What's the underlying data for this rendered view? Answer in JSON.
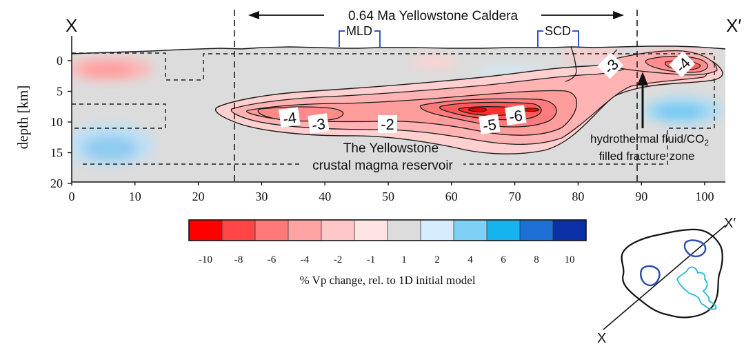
{
  "labels": {
    "x_left": "X",
    "x_right": "X′",
    "caldera": "0.64 Ma Yellowstone Caldera",
    "mld": "MLD",
    "scd": "SCD",
    "depth_axis": "depth [km]",
    "reservoir_line1": "The Yellowstone",
    "reservoir_line2": "crustal magma reservoir",
    "fluid_line1": "hydrothermal fluid/CO",
    "fluid_sub": "2",
    "fluid_line2": "filled fracture zone",
    "colorbar_label": "% Vp change, rel. to 1D initial model",
    "inset_top": "X′",
    "inset_bottom": "X"
  },
  "axes": {
    "x_ticks": [
      "0",
      "10",
      "20",
      "30",
      "40",
      "50",
      "60",
      "70",
      "80",
      "90",
      "100"
    ],
    "y_ticks": [
      "0",
      "5",
      "10",
      "15",
      "20"
    ]
  },
  "contour_labels": [
    "-3",
    "-4",
    "-4",
    "-3",
    "-2",
    "-5",
    "-6"
  ],
  "colorbar": {
    "ticks": [
      "-10",
      "-8",
      "-6",
      "-4",
      "-2",
      "-1",
      "1",
      "2",
      "4",
      "6",
      "8",
      "10"
    ],
    "colors": [
      "#ff0000",
      "#ff4545",
      "#ff7878",
      "#ffa3a3",
      "#ffc8c8",
      "#ffe4e4",
      "#dcdcdc",
      "#d6ecff",
      "#7fd0f5",
      "#16b4ef",
      "#1e6fd6",
      "#0a2fa6"
    ]
  }
}
